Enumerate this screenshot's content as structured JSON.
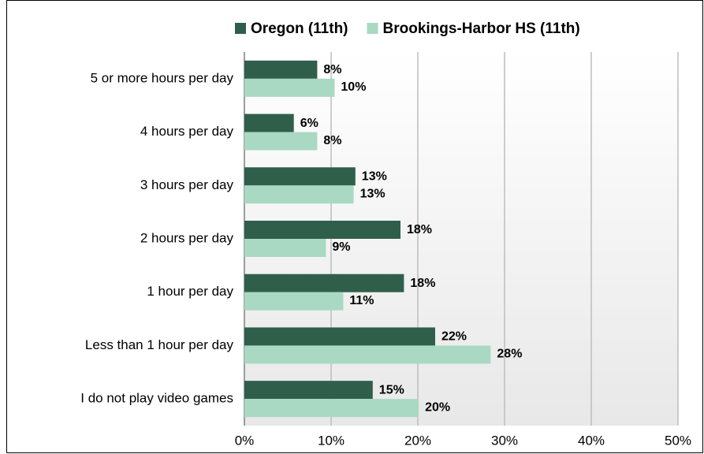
{
  "chart_data": {
    "type": "bar",
    "orientation": "horizontal",
    "categories": [
      "5 or more hours per day",
      "4 hours per day",
      "3 hours per day",
      "2 hours per day",
      "1 hour per day",
      "Less than 1 hour per day",
      "I do not play video games"
    ],
    "series": [
      {
        "name": "Oregon (11th)",
        "color": "#2f5f4b",
        "values": [
          8.4,
          5.7,
          12.8,
          18.0,
          18.4,
          22.0,
          14.8
        ],
        "value_labels": [
          "8%",
          "6%",
          "13%",
          "18%",
          "18%",
          "22%",
          "15%"
        ]
      },
      {
        "name": "Brookings-Harbor HS (11th)",
        "color": "#a9d9c2",
        "values": [
          10.4,
          8.4,
          12.6,
          9.4,
          11.4,
          28.4,
          20.1
        ],
        "value_labels": [
          "10%",
          "8%",
          "13%",
          "9%",
          "11%",
          "28%",
          "20%"
        ]
      }
    ],
    "xlim": [
      0,
      50
    ],
    "xticks": [
      {
        "value": 0,
        "label": "0%"
      },
      {
        "value": 10,
        "label": "10%"
      },
      {
        "value": 20,
        "label": "20%"
      },
      {
        "value": 30,
        "label": "30%"
      },
      {
        "value": 40,
        "label": "40%"
      },
      {
        "value": 50,
        "label": "50%"
      }
    ],
    "grid": true,
    "legend": "top"
  }
}
